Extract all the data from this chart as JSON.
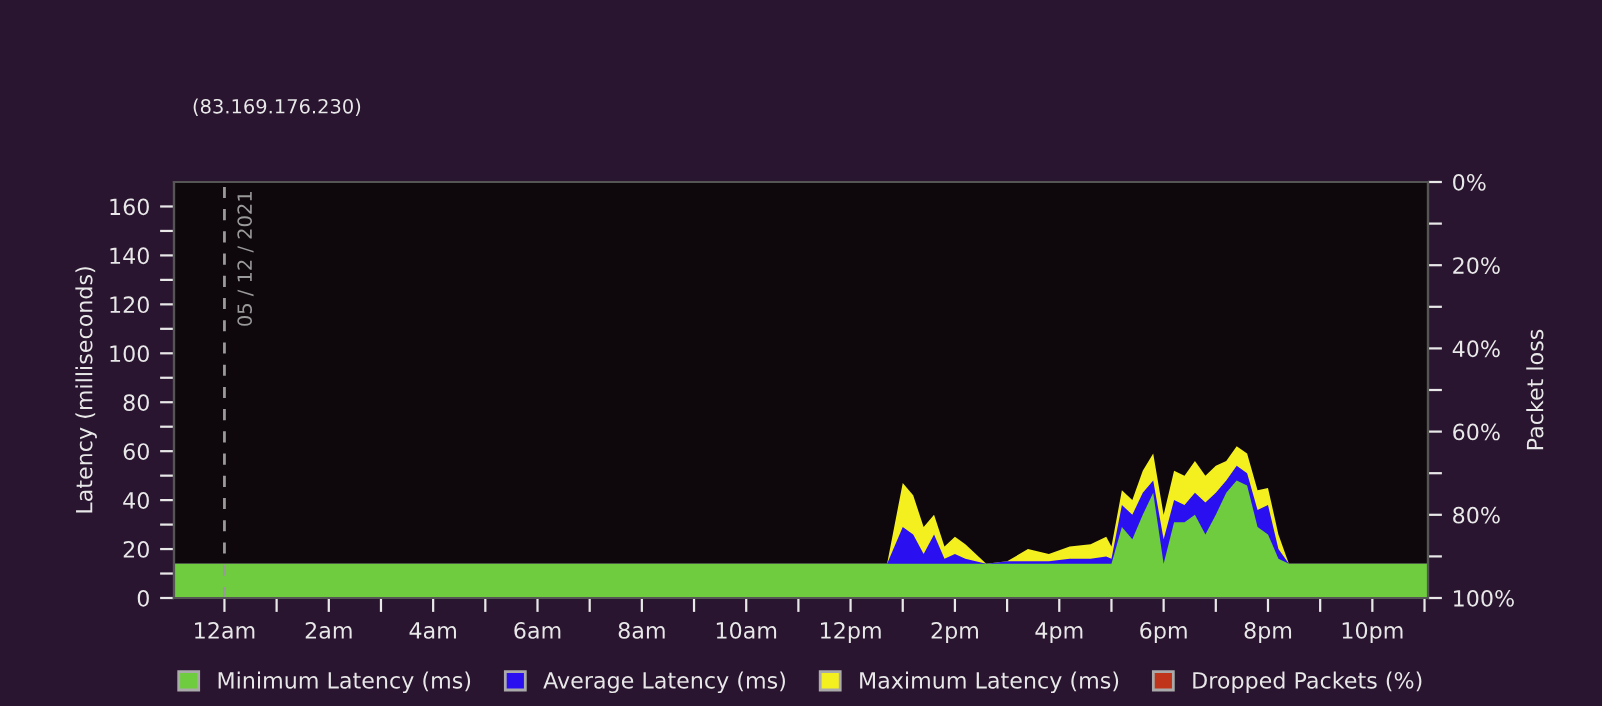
{
  "chart_data": {
    "type": "area",
    "subtitle": "(83.169.176.230)",
    "ylabel": "Latency (milliseconds)",
    "y2label": "Packet loss",
    "x": [
      "2021-12-04T23:02",
      "2021-12-05T12:42",
      "2021-12-05T13:00",
      "2021-12-05T13:12",
      "2021-12-05T13:24",
      "2021-12-05T13:36",
      "2021-12-05T13:48",
      "2021-12-05T14:00",
      "2021-12-05T14:12",
      "2021-12-05T14:24",
      "2021-12-05T14:36",
      "2021-12-05T15:00",
      "2021-12-05T15:24",
      "2021-12-05T15:48",
      "2021-12-05T16:12",
      "2021-12-05T16:36",
      "2021-12-05T16:54",
      "2021-12-05T17:00",
      "2021-12-05T17:12",
      "2021-12-05T17:24",
      "2021-12-05T17:36",
      "2021-12-05T17:48",
      "2021-12-05T18:00",
      "2021-12-05T18:12",
      "2021-12-05T18:24",
      "2021-12-05T18:36",
      "2021-12-05T18:48",
      "2021-12-05T19:00",
      "2021-12-05T19:12",
      "2021-12-05T19:24",
      "2021-12-05T19:36",
      "2021-12-05T19:48",
      "2021-12-05T20:00",
      "2021-12-05T20:12",
      "2021-12-05T20:24",
      "2021-12-05T23:04"
    ],
    "series": [
      {
        "name": "Minimum Latency (ms)",
        "color": "#6fcc3f",
        "values": [
          14,
          14,
          14,
          14,
          14,
          14,
          14,
          14,
          14,
          14,
          14,
          14,
          14,
          14,
          14,
          14,
          14,
          14,
          29,
          24,
          34,
          43,
          14,
          31,
          31,
          34,
          26,
          34,
          43,
          48,
          46,
          29,
          26,
          16,
          14,
          14
        ]
      },
      {
        "name": "Average Latency (ms)",
        "color": "#2a10f0",
        "values": [
          14,
          14,
          29,
          26,
          18,
          26,
          16,
          18,
          16,
          15,
          14,
          15,
          15,
          15,
          16,
          16,
          17,
          16,
          38,
          34,
          43,
          48,
          24,
          40,
          38,
          43,
          39,
          43,
          48,
          54,
          51,
          36,
          38,
          20,
          14,
          14
        ]
      },
      {
        "name": "Maximum Latency (ms)",
        "color": "#f4f020",
        "values": [
          14,
          14,
          47,
          42,
          29,
          34,
          21,
          25,
          22,
          18,
          14,
          15,
          20,
          18,
          21,
          22,
          25,
          21,
          44,
          40,
          52,
          59,
          34,
          52,
          50,
          56,
          50,
          54,
          56,
          62,
          59,
          44,
          45,
          26,
          14,
          14
        ]
      },
      {
        "name": "Dropped Packets (%)",
        "color": "#c0341c",
        "values": [
          null,
          null,
          null,
          null,
          null,
          null,
          null,
          null,
          null,
          null,
          null,
          null,
          null,
          null,
          null,
          null,
          null,
          null,
          null,
          null,
          null,
          null,
          null,
          null,
          null,
          null,
          null,
          null,
          null,
          null,
          null,
          null,
          null,
          null,
          null,
          null
        ]
      }
    ],
    "xlim": [
      "2021-12-04T23:02",
      "2021-12-05T23:04"
    ],
    "xticks": [
      {
        "value": "2021-12-05T00:00",
        "label": "12am"
      },
      {
        "value": "2021-12-05T01:00",
        "label": null
      },
      {
        "value": "2021-12-05T02:00",
        "label": "2am"
      },
      {
        "value": "2021-12-05T03:00",
        "label": null
      },
      {
        "value": "2021-12-05T04:00",
        "label": "4am"
      },
      {
        "value": "2021-12-05T05:00",
        "label": null
      },
      {
        "value": "2021-12-05T06:00",
        "label": "6am"
      },
      {
        "value": "2021-12-05T07:00",
        "label": null
      },
      {
        "value": "2021-12-05T08:00",
        "label": "8am"
      },
      {
        "value": "2021-12-05T09:00",
        "label": null
      },
      {
        "value": "2021-12-05T10:00",
        "label": "10am"
      },
      {
        "value": "2021-12-05T11:00",
        "label": null
      },
      {
        "value": "2021-12-05T12:00",
        "label": "12pm"
      },
      {
        "value": "2021-12-05T13:00",
        "label": null
      },
      {
        "value": "2021-12-05T14:00",
        "label": "2pm"
      },
      {
        "value": "2021-12-05T15:00",
        "label": null
      },
      {
        "value": "2021-12-05T16:00",
        "label": "4pm"
      },
      {
        "value": "2021-12-05T17:00",
        "label": null
      },
      {
        "value": "2021-12-05T18:00",
        "label": "6pm"
      },
      {
        "value": "2021-12-05T19:00",
        "label": null
      },
      {
        "value": "2021-12-05T20:00",
        "label": "8pm"
      },
      {
        "value": "2021-12-05T21:00",
        "label": null
      },
      {
        "value": "2021-12-05T22:00",
        "label": "10pm"
      },
      {
        "value": "2021-12-05T23:00",
        "label": null
      }
    ],
    "ylim": [
      0,
      170
    ],
    "yticks": [
      0,
      {
        "value": 10,
        "label": null
      },
      20,
      {
        "value": 30,
        "label": null
      },
      40,
      {
        "value": 50,
        "label": null
      },
      60,
      {
        "value": 70,
        "label": null
      },
      80,
      {
        "value": 90,
        "label": null
      },
      100,
      {
        "value": 110,
        "label": null
      },
      120,
      {
        "value": 130,
        "label": null
      },
      140,
      {
        "value": 150,
        "label": null
      },
      160
    ],
    "y2lim": [
      100,
      0
    ],
    "y2ticks": [
      {
        "value": 0,
        "label": "0%"
      },
      {
        "value": 10,
        "label": null
      },
      {
        "value": 20,
        "label": "20%"
      },
      {
        "value": 30,
        "label": null
      },
      {
        "value": 40,
        "label": "40%"
      },
      {
        "value": 50,
        "label": null
      },
      {
        "value": 60,
        "label": "60%"
      },
      {
        "value": 70,
        "label": null
      },
      {
        "value": 80,
        "label": "80%"
      },
      {
        "value": 90,
        "label": null
      },
      {
        "value": 100,
        "label": "100%"
      }
    ],
    "ref_lines": [
      {
        "axis": "x",
        "value": "2021-12-05",
        "label": "05 / 12 / 2021",
        "color": "#9a9a9a",
        "line_style": "dashed"
      }
    ],
    "grid": false,
    "legend": "bottom"
  }
}
